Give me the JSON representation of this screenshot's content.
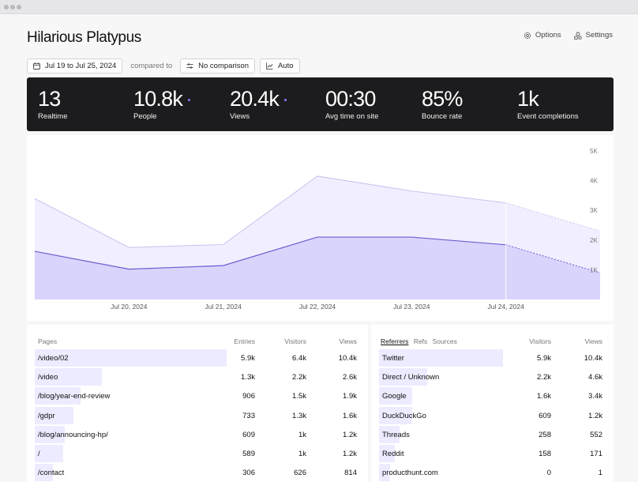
{
  "site": {
    "title": "Hilarious Platypus"
  },
  "actions": {
    "options": "Options",
    "settings": "Settings"
  },
  "filters": {
    "date_range": "Jul 19 to Jul 25, 2024",
    "compared_to": "compared to",
    "comparison": "No comparison",
    "interval": "Auto"
  },
  "stats": [
    {
      "value": "13",
      "label": "Realtime",
      "dot": false
    },
    {
      "value": "10.8k",
      "label": "People",
      "dot": true
    },
    {
      "value": "20.4k",
      "label": "Views",
      "dot": true
    },
    {
      "value": "00:30",
      "label": "Avg time on site",
      "dot": false
    },
    {
      "value": "85%",
      "label": "Bounce rate",
      "dot": false
    },
    {
      "value": "1k",
      "label": "Event completions",
      "dot": false
    }
  ],
  "chart_data": {
    "type": "area",
    "x_labels": [
      "Jul 20, 2024",
      "Jul 21, 2024",
      "Jul 22, 2024",
      "Jul 23, 2024",
      "Jul 24, 2024"
    ],
    "y_ticks": [
      "1K",
      "2K",
      "3K",
      "4K",
      "5K"
    ],
    "ylim": [
      0,
      5000
    ],
    "points_x": [
      "Jul 19",
      "Jul 20",
      "Jul 21",
      "Jul 22",
      "Jul 23",
      "Jul 24",
      "Jul 25"
    ],
    "series": [
      {
        "values": [
          3400,
          1750,
          1850,
          4150,
          3650,
          3250,
          2300
        ],
        "color": "#c9c2ee"
      },
      {
        "values": [
          1620,
          1020,
          1140,
          2100,
          2100,
          1840,
          900
        ],
        "color": "#6b5fcf"
      }
    ],
    "partial_from_index": 5,
    "grid": false
  },
  "pages": {
    "headers": {
      "name": "Pages",
      "entries": "Entries",
      "visitors": "Visitors",
      "views": "Views"
    },
    "rows": [
      {
        "name": "/video/02",
        "entries": "5.9k",
        "visitors": "6.4k",
        "views": "10.4k",
        "share": 1.0
      },
      {
        "name": "/video",
        "entries": "1.3k",
        "visitors": "2.2k",
        "views": "2.6k",
        "share": 0.35
      },
      {
        "name": "/blog/year-end-review",
        "entries": "906",
        "visitors": "1.5k",
        "views": "1.9k",
        "share": 0.24
      },
      {
        "name": "/gdpr",
        "entries": "733",
        "visitors": "1.3k",
        "views": "1.6k",
        "share": 0.2
      },
      {
        "name": "/blog/announcing-hp/",
        "entries": "609",
        "visitors": "1k",
        "views": "1.2k",
        "share": 0.155
      },
      {
        "name": "/",
        "entries": "589",
        "visitors": "1k",
        "views": "1.2k",
        "share": 0.15
      },
      {
        "name": "/contact",
        "entries": "306",
        "visitors": "626",
        "views": "814",
        "share": 0.095
      }
    ]
  },
  "referrers": {
    "tabs": [
      "Referrers",
      "Refs",
      "Sources"
    ],
    "headers": {
      "visitors": "Visitors",
      "views": "Views"
    },
    "rows": [
      {
        "name": "Twitter",
        "visitors": "5.9k",
        "views": "10.4k",
        "share": 1.0
      },
      {
        "name": "Direct / Unknown",
        "visitors": "2.2k",
        "views": "4.6k",
        "share": 0.39
      },
      {
        "name": "Google",
        "visitors": "1.6k",
        "views": "3.4k",
        "share": 0.27
      },
      {
        "name": "DuckDuckGo",
        "visitors": "609",
        "views": "1.2k",
        "share": 0
      },
      {
        "name": "Threads",
        "visitors": "258",
        "views": "552",
        "share": 0
      },
      {
        "name": "Reddit",
        "visitors": "158",
        "views": "171",
        "share": 0
      },
      {
        "name": "producthunt.com",
        "visitors": "0",
        "views": "1",
        "share": 0
      }
    ]
  }
}
